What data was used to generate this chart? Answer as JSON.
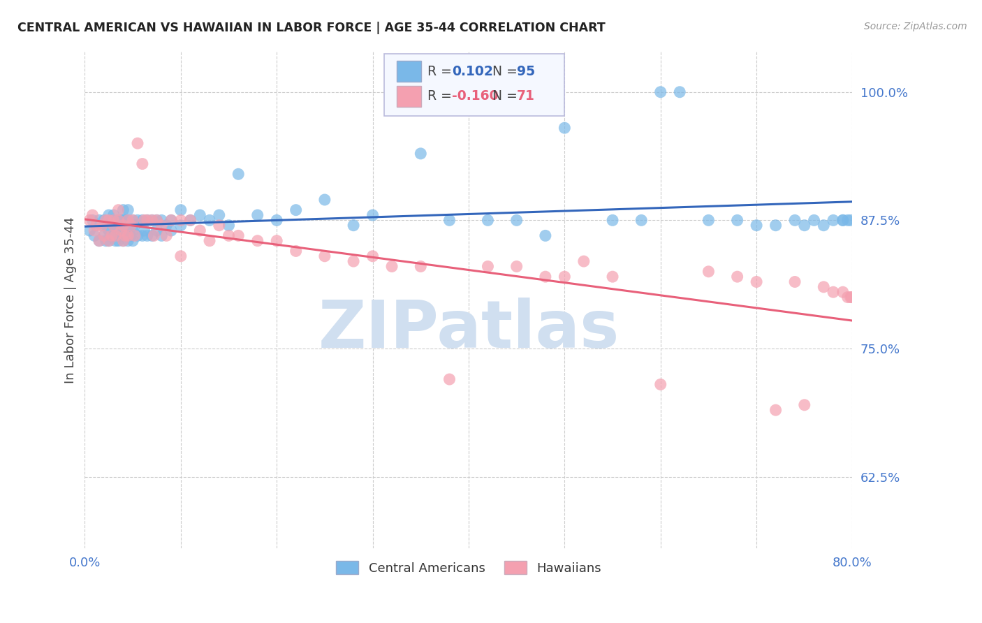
{
  "title": "CENTRAL AMERICAN VS HAWAIIAN IN LABOR FORCE | AGE 35-44 CORRELATION CHART",
  "source": "Source: ZipAtlas.com",
  "ylabel": "In Labor Force | Age 35-44",
  "xlim": [
    0.0,
    0.8
  ],
  "ylim": [
    0.555,
    1.04
  ],
  "yticks": [
    0.625,
    0.75,
    0.875,
    1.0
  ],
  "ytick_labels": [
    "62.5%",
    "75.0%",
    "87.5%",
    "100.0%"
  ],
  "xticks": [
    0.0,
    0.1,
    0.2,
    0.3,
    0.4,
    0.5,
    0.6,
    0.7,
    0.8
  ],
  "xtick_labels": [
    "0.0%",
    "",
    "",
    "",
    "",
    "",
    "",
    "",
    "80.0%"
  ],
  "blue_R": 0.102,
  "blue_N": 95,
  "pink_R": -0.16,
  "pink_N": 71,
  "blue_color": "#7ab8e8",
  "pink_color": "#f4a0b0",
  "blue_line_color": "#3366bb",
  "pink_line_color": "#e8607a",
  "title_color": "#222222",
  "axis_label_color": "#444444",
  "tick_color": "#4477cc",
  "watermark": "ZIPatlas",
  "watermark_color": "#d0dff0",
  "legend_box_color": "#f5f8ff",
  "blue_scatter_x": [
    0.005,
    0.008,
    0.01,
    0.012,
    0.015,
    0.015,
    0.018,
    0.02,
    0.02,
    0.022,
    0.022,
    0.025,
    0.025,
    0.025,
    0.028,
    0.028,
    0.03,
    0.03,
    0.03,
    0.032,
    0.032,
    0.035,
    0.035,
    0.035,
    0.038,
    0.038,
    0.04,
    0.04,
    0.04,
    0.04,
    0.042,
    0.042,
    0.045,
    0.045,
    0.045,
    0.045,
    0.048,
    0.048,
    0.05,
    0.05,
    0.05,
    0.052,
    0.055,
    0.055,
    0.06,
    0.06,
    0.062,
    0.065,
    0.065,
    0.07,
    0.07,
    0.075,
    0.075,
    0.08,
    0.08,
    0.085,
    0.09,
    0.09,
    0.1,
    0.1,
    0.11,
    0.12,
    0.13,
    0.14,
    0.15,
    0.16,
    0.18,
    0.2,
    0.22,
    0.25,
    0.28,
    0.3,
    0.35,
    0.38,
    0.42,
    0.45,
    0.48,
    0.5,
    0.55,
    0.58,
    0.6,
    0.62,
    0.65,
    0.68,
    0.7,
    0.72,
    0.74,
    0.75,
    0.76,
    0.77,
    0.78,
    0.79,
    0.79,
    0.795,
    0.798
  ],
  "blue_scatter_y": [
    0.865,
    0.875,
    0.86,
    0.87,
    0.855,
    0.875,
    0.87,
    0.86,
    0.875,
    0.855,
    0.87,
    0.855,
    0.865,
    0.88,
    0.86,
    0.875,
    0.86,
    0.87,
    0.88,
    0.855,
    0.868,
    0.855,
    0.865,
    0.875,
    0.86,
    0.875,
    0.855,
    0.865,
    0.875,
    0.885,
    0.86,
    0.875,
    0.855,
    0.865,
    0.875,
    0.885,
    0.86,
    0.87,
    0.855,
    0.865,
    0.875,
    0.87,
    0.86,
    0.875,
    0.86,
    0.875,
    0.865,
    0.86,
    0.875,
    0.86,
    0.875,
    0.865,
    0.875,
    0.86,
    0.875,
    0.87,
    0.865,
    0.875,
    0.87,
    0.885,
    0.875,
    0.88,
    0.875,
    0.88,
    0.87,
    0.92,
    0.88,
    0.875,
    0.885,
    0.895,
    0.87,
    0.88,
    0.94,
    0.875,
    0.875,
    0.875,
    0.86,
    0.965,
    0.875,
    0.875,
    1.0,
    1.0,
    0.875,
    0.875,
    0.87,
    0.87,
    0.875,
    0.87,
    0.875,
    0.87,
    0.875,
    0.875,
    0.875,
    0.875,
    0.875
  ],
  "pink_scatter_x": [
    0.005,
    0.008,
    0.01,
    0.012,
    0.015,
    0.018,
    0.02,
    0.022,
    0.025,
    0.025,
    0.028,
    0.03,
    0.03,
    0.032,
    0.035,
    0.035,
    0.038,
    0.04,
    0.04,
    0.042,
    0.045,
    0.045,
    0.048,
    0.05,
    0.052,
    0.055,
    0.06,
    0.062,
    0.065,
    0.07,
    0.072,
    0.075,
    0.08,
    0.085,
    0.09,
    0.1,
    0.1,
    0.11,
    0.12,
    0.13,
    0.14,
    0.15,
    0.16,
    0.18,
    0.2,
    0.22,
    0.25,
    0.28,
    0.3,
    0.32,
    0.35,
    0.38,
    0.42,
    0.45,
    0.48,
    0.5,
    0.52,
    0.55,
    0.6,
    0.65,
    0.68,
    0.7,
    0.72,
    0.74,
    0.75,
    0.77,
    0.78,
    0.79,
    0.795,
    0.798,
    0.799
  ],
  "pink_scatter_y": [
    0.875,
    0.88,
    0.865,
    0.87,
    0.855,
    0.87,
    0.86,
    0.875,
    0.855,
    0.875,
    0.86,
    0.87,
    0.875,
    0.86,
    0.875,
    0.885,
    0.865,
    0.855,
    0.87,
    0.86,
    0.875,
    0.86,
    0.87,
    0.875,
    0.86,
    0.95,
    0.93,
    0.875,
    0.875,
    0.875,
    0.86,
    0.875,
    0.87,
    0.86,
    0.875,
    0.875,
    0.84,
    0.875,
    0.865,
    0.855,
    0.87,
    0.86,
    0.86,
    0.855,
    0.855,
    0.845,
    0.84,
    0.835,
    0.84,
    0.83,
    0.83,
    0.72,
    0.83,
    0.83,
    0.82,
    0.82,
    0.835,
    0.82,
    0.715,
    0.825,
    0.82,
    0.815,
    0.69,
    0.815,
    0.695,
    0.81,
    0.805,
    0.805,
    0.8,
    0.8,
    0.8
  ]
}
